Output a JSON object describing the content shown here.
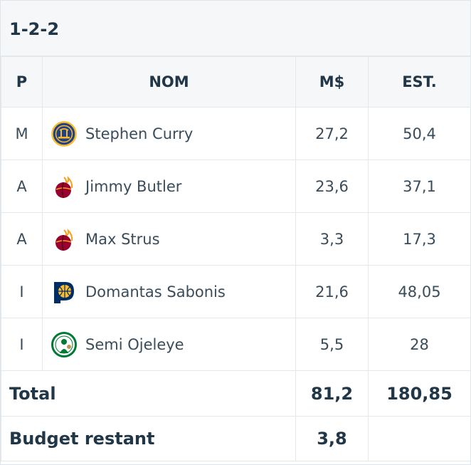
{
  "formation": "1-2-2",
  "headers": {
    "pos": "P",
    "name": "NOM",
    "salary": "M$",
    "estimate": "EST."
  },
  "players": [
    {
      "pos": "M",
      "name": "Stephen Curry",
      "salary": "27,2",
      "estimate": "50,4",
      "team_logo": "warriors-logo"
    },
    {
      "pos": "A",
      "name": "Jimmy Butler",
      "salary": "23,6",
      "estimate": "37,1",
      "team_logo": "heat-logo"
    },
    {
      "pos": "A",
      "name": "Max Strus",
      "salary": "3,3",
      "estimate": "17,3",
      "team_logo": "heat-logo"
    },
    {
      "pos": "I",
      "name": "Domantas Sabonis",
      "salary": "21,6",
      "estimate": "48,05",
      "team_logo": "pacers-logo"
    },
    {
      "pos": "I",
      "name": "Semi Ojeleye",
      "salary": "5,5",
      "estimate": "28",
      "team_logo": "celtics-logo"
    }
  ],
  "total": {
    "label": "Total",
    "salary": "81,2",
    "estimate": "180,85"
  },
  "budget": {
    "label": "Budget restant",
    "value": "3,8"
  },
  "colors": {
    "header_bg": "#f5f7f9",
    "border": "#e3e8ec",
    "text": "#213748"
  }
}
